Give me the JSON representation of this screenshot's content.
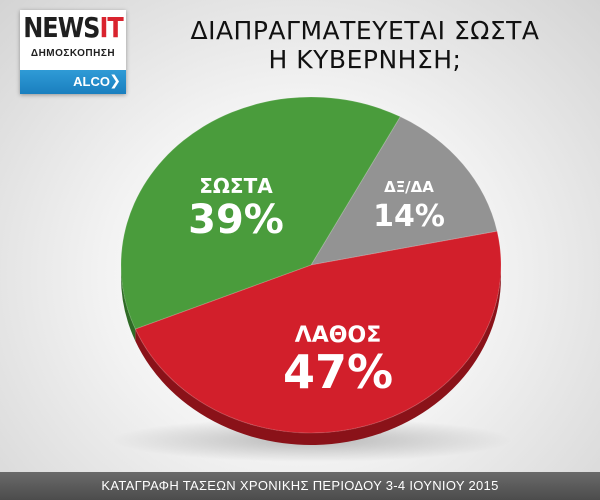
{
  "logo": {
    "brand_main": "NEWS",
    "brand_accent": "IT",
    "subtitle": "ΔΗΜΟΣΚΟΠΗΣΗ",
    "partner": "ALCO",
    "chevron": "❯"
  },
  "colors": {
    "accent_red": "#d9232e",
    "partner_blue": "#1a7fbf"
  },
  "chart_data": {
    "type": "pie",
    "title_lines": [
      "ΔΙΑΠΡΑΓΜΑΤΕΥΕΤΑΙ ΣΩΣΤΑ",
      "Η ΚΥΒΕΡΝΗΣΗ;"
    ],
    "slices": [
      {
        "label": "ΣΩΣΤΑ",
        "value": 39,
        "display": "39%",
        "color": "#4a9c3c",
        "side_color": "#2e6a25"
      },
      {
        "label": "ΔΞ/ΔΑ",
        "value": 14,
        "display": "14%",
        "color": "#939393",
        "side_color": "#606060"
      },
      {
        "label": "ΛΑΘΟΣ",
        "value": 47,
        "display": "47%",
        "color": "#d21f2b",
        "side_color": "#8a1219"
      }
    ]
  },
  "footer": {
    "text": "ΚΑΤΑΓΡΑΦΗ ΤΑΣΕΩΝ ΧΡΟΝΙΚΗΣ ΠΕΡΙΟΔΟΥ 3-4 ΙΟΥΝΙΟΥ 2015"
  }
}
